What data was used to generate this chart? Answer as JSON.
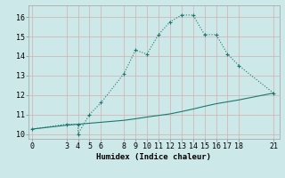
{
  "xlabel": "Humidex (Indice chaleur)",
  "bg_color": "#cce8e8",
  "grid_color": "#b0d4d4",
  "line_color": "#1a7a6e",
  "curve1_x": [
    0,
    3,
    4,
    4,
    5,
    6,
    8,
    9,
    10,
    11,
    12,
    13,
    14,
    15,
    16,
    17,
    18,
    21
  ],
  "curve1_y": [
    10.25,
    10.5,
    10.5,
    10.0,
    11.0,
    11.6,
    13.1,
    14.3,
    14.1,
    15.1,
    15.75,
    16.1,
    16.1,
    15.1,
    15.1,
    14.1,
    13.5,
    12.1
  ],
  "curve2_x": [
    0,
    3,
    4,
    5,
    6,
    8,
    9,
    10,
    11,
    12,
    13,
    14,
    15,
    16,
    17,
    18,
    21
  ],
  "curve2_y": [
    10.25,
    10.45,
    10.5,
    10.55,
    10.6,
    10.7,
    10.78,
    10.87,
    10.95,
    11.03,
    11.15,
    11.28,
    11.42,
    11.55,
    11.65,
    11.75,
    12.1
  ],
  "xticks": [
    0,
    3,
    4,
    5,
    6,
    8,
    9,
    10,
    11,
    12,
    13,
    14,
    15,
    16,
    17,
    18,
    21
  ],
  "yticks": [
    10,
    11,
    12,
    13,
    14,
    15,
    16
  ],
  "xlim": [
    -0.3,
    21.5
  ],
  "ylim": [
    9.75,
    16.6
  ],
  "label_fontsize": 6.5,
  "tick_fontsize": 6.0
}
